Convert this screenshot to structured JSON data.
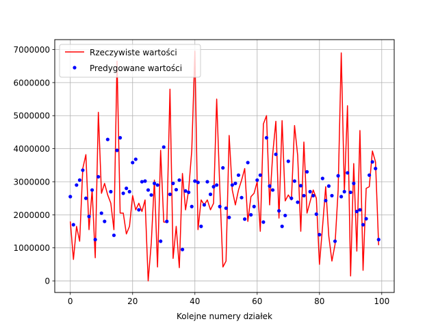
{
  "chart_data": {
    "type": "line",
    "title": "",
    "xlabel": "Kolejne numery działek",
    "ylabel": "",
    "xlim": [
      -5,
      104
    ],
    "ylim": [
      -350000,
      7300000
    ],
    "xticks": [
      0,
      20,
      40,
      60,
      80,
      100
    ],
    "yticks": [
      0,
      1000000,
      2000000,
      3000000,
      4000000,
      5000000,
      6000000,
      7000000
    ],
    "grid": true,
    "legend_position": "top-left",
    "series": [
      {
        "name": "Rzeczywiste wartości",
        "style": "line",
        "color": "#ff0000",
        "x": [
          0,
          1,
          2,
          3,
          4,
          5,
          6,
          7,
          8,
          9,
          10,
          11,
          12,
          13,
          14,
          15,
          16,
          17,
          18,
          19,
          20,
          21,
          22,
          23,
          24,
          25,
          26,
          27,
          28,
          29,
          30,
          31,
          32,
          33,
          34,
          35,
          36,
          37,
          38,
          39,
          40,
          41,
          42,
          43,
          44,
          45,
          46,
          47,
          48,
          49,
          50,
          51,
          52,
          53,
          54,
          55,
          56,
          57,
          58,
          59,
          60,
          61,
          62,
          63,
          64,
          65,
          66,
          67,
          68,
          69,
          70,
          71,
          72,
          73,
          74,
          75,
          76,
          77,
          78,
          79,
          80,
          81,
          82,
          83,
          84,
          85,
          86,
          87,
          88,
          89,
          90,
          91,
          92,
          93,
          94,
          95,
          96,
          97,
          98,
          99
        ],
        "values": [
          1800000,
          650000,
          1650000,
          1200000,
          3400000,
          3820000,
          1550000,
          2750000,
          700000,
          5100000,
          2650000,
          2950000,
          2600000,
          2350000,
          1550000,
          6650000,
          2050000,
          2050000,
          1420000,
          1650000,
          2580000,
          2150000,
          2350000,
          2100000,
          2450000,
          0,
          1150000,
          3050000,
          420000,
          3950000,
          1780000,
          1780000,
          5800000,
          680000,
          1650000,
          400000,
          3250000,
          2150000,
          2750000,
          3950000,
          6950000,
          1550000,
          2450000,
          2300000,
          2450000,
          2150000,
          2350000,
          5500000,
          2800000,
          420000,
          600000,
          4400000,
          2750000,
          2300000,
          2750000,
          3050000,
          3400000,
          1800000,
          2550000,
          2650000,
          3000000,
          1500000,
          4750000,
          5000000,
          2300000,
          3850000,
          4830000,
          1900000,
          4850000,
          2420000,
          2600000,
          2450000,
          4700000,
          3800000,
          1500000,
          4200000,
          2050000,
          2400000,
          2750000,
          2500000,
          500000,
          1650000,
          2850000,
          1350000,
          600000,
          1100000,
          2750000,
          6900000,
          2700000,
          5300000,
          150000,
          3550000,
          900000,
          4550000,
          320000,
          2800000,
          2850000,
          3930000,
          3600000,
          1080000
        ]
      },
      {
        "name": "Predygowane wartości",
        "style": "markers",
        "color": "#0000ff",
        "x": [
          0,
          1,
          2,
          3,
          4,
          5,
          6,
          7,
          8,
          9,
          10,
          11,
          12,
          13,
          14,
          15,
          16,
          17,
          18,
          19,
          20,
          21,
          22,
          23,
          24,
          25,
          26,
          27,
          28,
          29,
          30,
          31,
          32,
          33,
          34,
          35,
          36,
          37,
          38,
          39,
          40,
          41,
          42,
          43,
          44,
          45,
          46,
          47,
          48,
          49,
          50,
          51,
          52,
          53,
          54,
          55,
          56,
          57,
          58,
          59,
          60,
          61,
          62,
          63,
          64,
          65,
          66,
          67,
          68,
          69,
          70,
          71,
          72,
          73,
          74,
          75,
          76,
          77,
          78,
          79,
          80,
          81,
          82,
          83,
          84,
          85,
          86,
          87,
          88,
          89,
          90,
          91,
          92,
          93,
          94,
          95,
          96,
          97,
          98,
          99
        ],
        "values": [
          2550000,
          1700000,
          2900000,
          3050000,
          3350000,
          2500000,
          1950000,
          2750000,
          1250000,
          3150000,
          2050000,
          1800000,
          4280000,
          2700000,
          1380000,
          3950000,
          4330000,
          2650000,
          2800000,
          2700000,
          3580000,
          3680000,
          2150000,
          3000000,
          3020000,
          2750000,
          2600000,
          2950000,
          2900000,
          1200000,
          4050000,
          1800000,
          2620000,
          2950000,
          2760000,
          3050000,
          950000,
          2720000,
          2680000,
          2250000,
          3020000,
          2980000,
          1650000,
          2300000,
          3000000,
          2620000,
          2850000,
          2900000,
          2250000,
          3420000,
          2200000,
          1920000,
          2900000,
          2950000,
          3200000,
          2520000,
          1870000,
          3580000,
          2000000,
          2250000,
          3050000,
          3200000,
          1780000,
          4330000,
          2870000,
          2750000,
          3830000,
          2120000,
          1650000,
          1980000,
          3620000,
          2500000,
          3020000,
          2380000,
          2880000,
          2580000,
          3300000,
          2700000,
          2580000,
          2020000,
          1400000,
          3100000,
          2430000,
          2870000,
          2580000,
          1200000,
          3180000,
          2550000,
          2700000,
          3270000,
          2680000,
          2950000,
          2100000,
          2150000,
          1700000,
          1880000,
          3200000,
          3600000,
          3400000,
          1250000
        ]
      }
    ]
  }
}
